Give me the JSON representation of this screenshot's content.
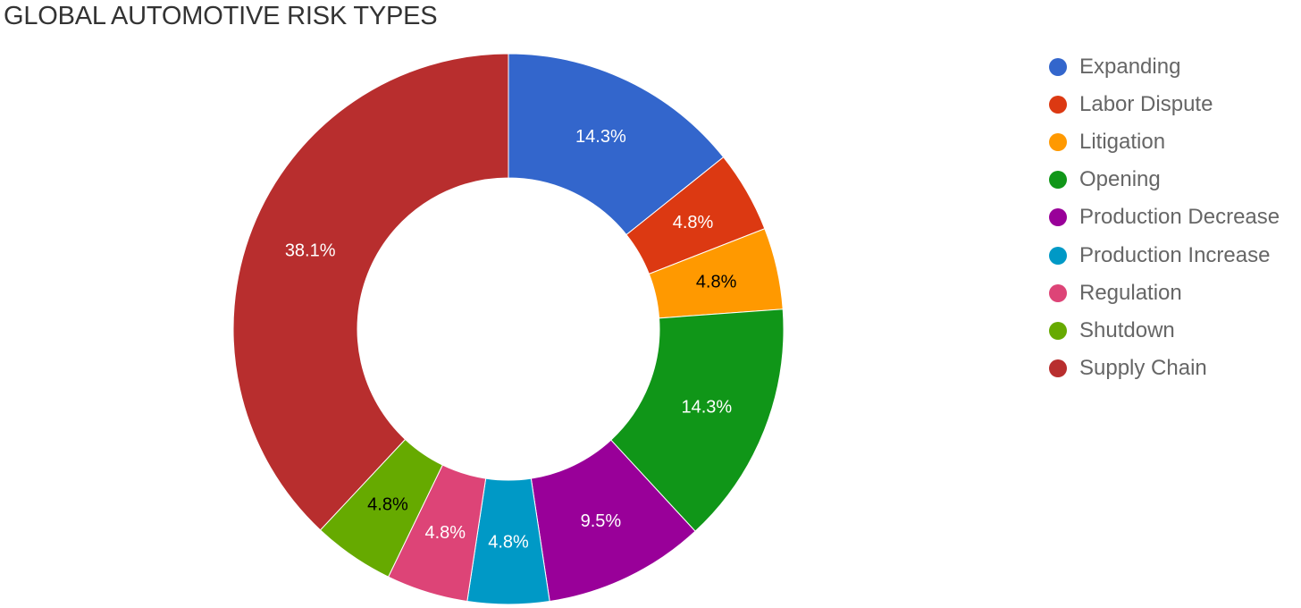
{
  "chart_data": {
    "type": "pie",
    "title": "GLOBAL AUTOMOTIVE RISK TYPES",
    "legend_position": "right",
    "donut": true,
    "categories": [
      "Expanding",
      "Labor Dispute",
      "Litigation",
      "Opening",
      "Production Decrease",
      "Production Increase",
      "Regulation",
      "Shutdown",
      "Supply Chain"
    ],
    "values": [
      14.3,
      4.8,
      4.8,
      14.3,
      9.5,
      4.8,
      4.8,
      4.8,
      38.1
    ],
    "data_labels": [
      "14.3%",
      "4.8%",
      "4.8%",
      "14.3%",
      "9.5%",
      "4.8%",
      "4.8%",
      "4.8%",
      "38.1%"
    ],
    "colors": [
      "#3366cc",
      "#dc3912",
      "#ff9900",
      "#109618",
      "#990099",
      "#0099c6",
      "#dd4477",
      "#66aa00",
      "#b82e2e"
    ],
    "label_colors": [
      "#ffffff",
      "#ffffff",
      "#000000",
      "#ffffff",
      "#ffffff",
      "#ffffff",
      "#ffffff",
      "#000000",
      "#ffffff"
    ]
  }
}
